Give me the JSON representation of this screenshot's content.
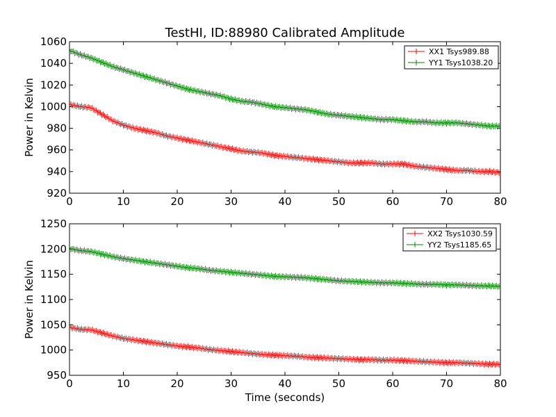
{
  "chart_data": [
    {
      "type": "line",
      "title": "TestHI, ID:88980 Calibrated Amplitude",
      "xlabel": "",
      "ylabel": "Power in Kelvin",
      "xlim": [
        0,
        80
      ],
      "ylim": [
        920,
        1060
      ],
      "x_ticks": [
        "0",
        "10",
        "20",
        "30",
        "40",
        "50",
        "60",
        "70",
        "80"
      ],
      "y_ticks": [
        "920",
        "940",
        "960",
        "980",
        "1000",
        "1020",
        "1040",
        "1060"
      ],
      "grid": false,
      "legend_position": "top-right",
      "x": [
        0,
        2,
        4,
        6,
        8,
        10,
        12,
        14,
        16,
        18,
        20,
        22,
        24,
        26,
        28,
        30,
        32,
        34,
        36,
        38,
        40,
        42,
        44,
        46,
        48,
        50,
        52,
        54,
        56,
        58,
        60,
        62,
        64,
        66,
        68,
        70,
        72,
        74,
        76,
        78,
        80
      ],
      "series": [
        {
          "name": "XX1 Tsys989.88",
          "color": "#ff0000",
          "values": [
            1002,
            1000,
            999,
            993,
            987,
            983,
            980,
            978,
            976,
            973,
            971,
            969,
            967,
            965,
            963,
            961,
            959,
            958,
            957,
            955,
            954,
            953,
            952,
            951,
            950,
            949,
            948,
            948,
            948,
            947,
            947,
            947,
            945,
            944,
            943,
            942,
            941,
            941,
            940,
            940,
            939
          ]
        },
        {
          "name": "YY1 Tsys1038.20",
          "color": "#008000",
          "values": [
            1052,
            1048,
            1045,
            1041,
            1037,
            1034,
            1031,
            1028,
            1025,
            1022,
            1019,
            1016,
            1014,
            1012,
            1010,
            1007,
            1005,
            1004,
            1002,
            1000,
            999,
            998,
            997,
            995,
            993,
            992,
            991,
            990,
            989,
            988,
            988,
            987,
            986,
            986,
            985,
            985,
            985,
            984,
            983,
            982,
            982
          ]
        }
      ]
    },
    {
      "type": "line",
      "title": "",
      "xlabel": "Time (seconds)",
      "ylabel": "Power in Kelvin",
      "xlim": [
        0,
        80
      ],
      "ylim": [
        950,
        1250
      ],
      "x_ticks": [
        "0",
        "10",
        "20",
        "30",
        "40",
        "50",
        "60",
        "70",
        "80"
      ],
      "y_ticks": [
        "950",
        "1000",
        "1050",
        "1100",
        "1150",
        "1200",
        "1250"
      ],
      "grid": false,
      "legend_position": "top-right",
      "x": [
        0,
        2,
        4,
        6,
        8,
        10,
        12,
        14,
        16,
        18,
        20,
        22,
        24,
        26,
        28,
        30,
        32,
        34,
        36,
        38,
        40,
        42,
        44,
        46,
        48,
        50,
        52,
        54,
        56,
        58,
        60,
        62,
        64,
        66,
        68,
        70,
        72,
        74,
        76,
        78,
        80
      ],
      "series": [
        {
          "name": "XX2 Tsys1030.59",
          "color": "#ff0000",
          "values": [
            1045,
            1041,
            1040,
            1034,
            1028,
            1023,
            1020,
            1017,
            1014,
            1011,
            1008,
            1006,
            1004,
            1001,
            999,
            997,
            995,
            993,
            991,
            990,
            989,
            988,
            986,
            985,
            984,
            983,
            982,
            981,
            981,
            980,
            980,
            979,
            978,
            977,
            976,
            975,
            975,
            974,
            973,
            972,
            972
          ]
        },
        {
          "name": "YY2 Tsys1185.65",
          "color": "#008000",
          "values": [
            1201,
            1197,
            1195,
            1190,
            1185,
            1181,
            1178,
            1175,
            1172,
            1169,
            1166,
            1163,
            1161,
            1158,
            1156,
            1154,
            1152,
            1150,
            1148,
            1146,
            1145,
            1144,
            1143,
            1141,
            1139,
            1137,
            1136,
            1135,
            1134,
            1133,
            1133,
            1132,
            1131,
            1130,
            1130,
            1129,
            1129,
            1128,
            1127,
            1127,
            1126
          ]
        }
      ]
    }
  ]
}
